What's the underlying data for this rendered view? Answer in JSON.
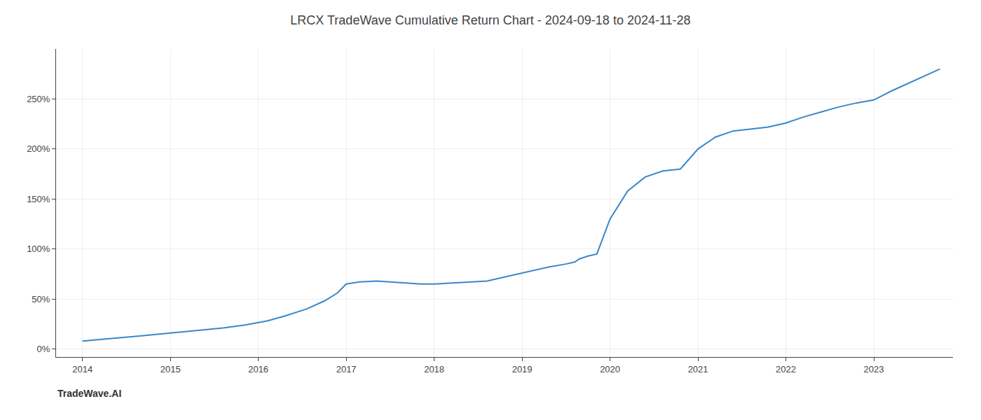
{
  "chart_data": {
    "type": "line",
    "title": "LRCX TradeWave Cumulative Return Chart - 2024-09-18 to 2024-11-28",
    "annotations": [
      "TradeWave.AI"
    ],
    "color": "#3a87c8",
    "grid": true,
    "x": [
      2014.0,
      2014.15,
      2014.4,
      2014.65,
      2014.9,
      2015.1,
      2015.35,
      2015.6,
      2015.85,
      2016.1,
      2016.3,
      2016.55,
      2016.75,
      2016.9,
      2017.0,
      2017.15,
      2017.35,
      2017.5,
      2017.7,
      2017.85,
      2018.0,
      2018.2,
      2018.4,
      2018.6,
      2018.8,
      2019.0,
      2019.15,
      2019.3,
      2019.5,
      2019.6,
      2019.65,
      2019.75,
      2019.85,
      2020.0,
      2020.2,
      2020.4,
      2020.6,
      2020.8,
      2021.0,
      2021.2,
      2021.4,
      2021.6,
      2021.8,
      2022.0,
      2022.2,
      2022.4,
      2022.6,
      2022.8,
      2023.0,
      2023.2,
      2023.5,
      2023.75
    ],
    "values": [
      8,
      9,
      11,
      13,
      15,
      17,
      19,
      21,
      24,
      28,
      33,
      40,
      48,
      56,
      65,
      67,
      68,
      67,
      66,
      65,
      65,
      66,
      67,
      68,
      72,
      76,
      79,
      82,
      85,
      87,
      90,
      93,
      95,
      130,
      158,
      172,
      178,
      180,
      200,
      212,
      218,
      220,
      222,
      226,
      232,
      237,
      242,
      246,
      249,
      258,
      270,
      280
    ],
    "xlim": [
      2013.7,
      2023.9
    ],
    "ylim": [
      -8,
      300
    ],
    "xticks": [
      2014,
      2015,
      2016,
      2017,
      2018,
      2019,
      2020,
      2021,
      2022,
      2023
    ],
    "yticks": [
      {
        "value": 0,
        "label": "0%"
      },
      {
        "value": 50,
        "label": "50%"
      },
      {
        "value": 100,
        "label": "100%"
      },
      {
        "value": 150,
        "label": "150%"
      },
      {
        "value": 200,
        "label": "200%"
      },
      {
        "value": 250,
        "label": "250%"
      }
    ]
  }
}
